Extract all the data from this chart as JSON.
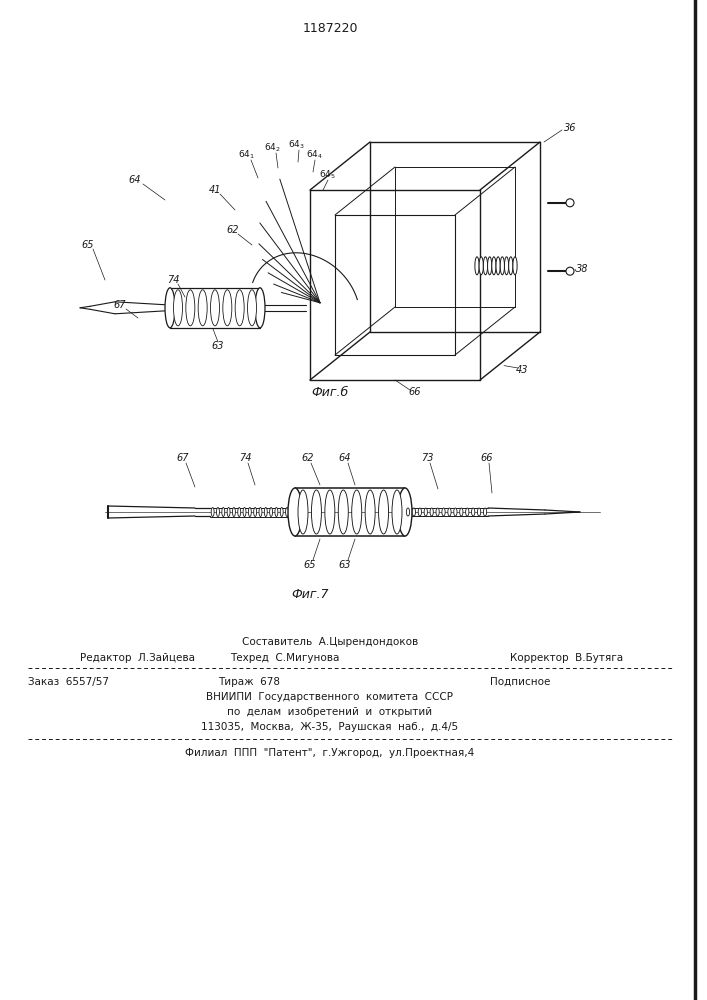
{
  "title": "1187220",
  "fig6_caption": "Фиг.б",
  "fig7_caption": "Фиг.7",
  "footer_line1_center": "Составитель  А.Цырендондоков",
  "footer_line2_left": "Редактор  Л.Зайцева",
  "footer_line2_center": "Техред  С.Мигунова",
  "footer_line2_right": "Корректор  В.Бутяга",
  "footer_line3_left": "Заказ  6557/57",
  "footer_line3_center": "Тираж  678",
  "footer_line3_right": "Подписное",
  "footer_line4": "ВНИИПИ  Государственного  комитета  СССР",
  "footer_line5": "по  делам  изобретений  и  открытий",
  "footer_line6": "113035,  Москва,  Ж-35,  Раушская  наб.,  д.4/5",
  "footer_line7": "Филиал  ППП  \"Патент\",  г.Ужгород,  ул.Проектная,4",
  "bg_color": "#ffffff",
  "line_color": "#1a1a1a"
}
